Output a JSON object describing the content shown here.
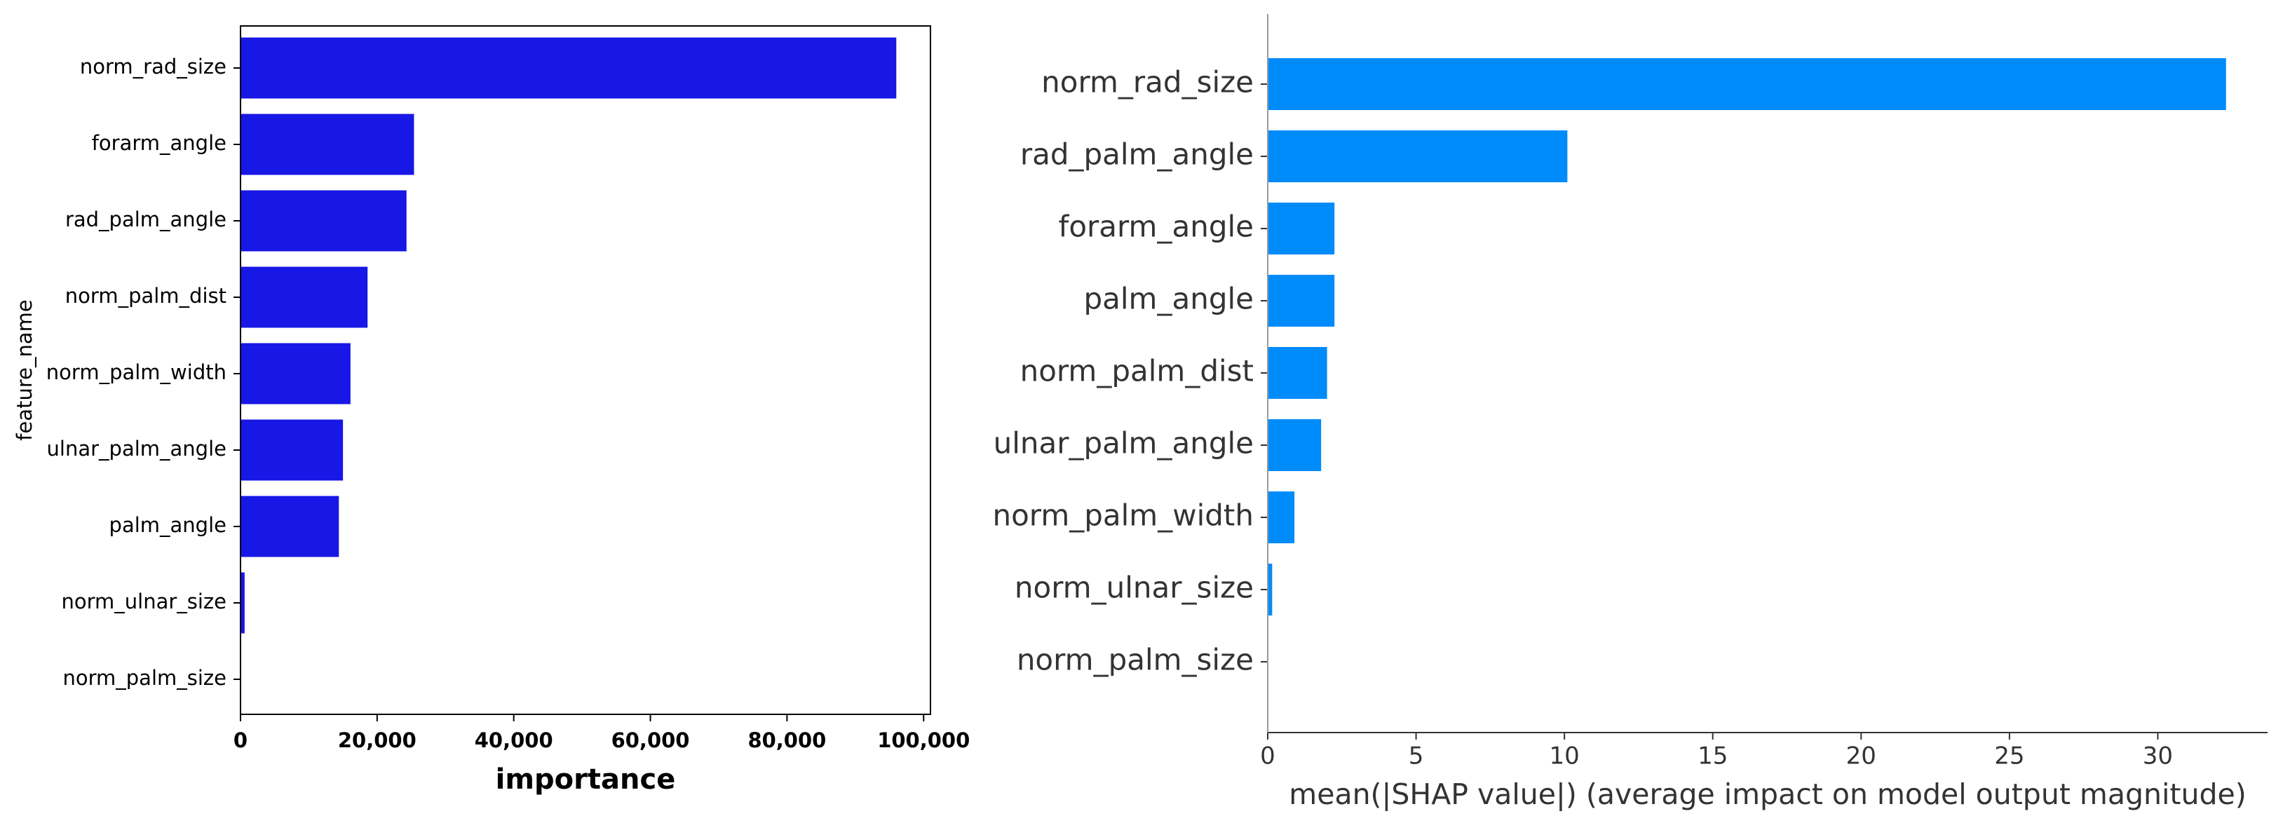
{
  "chart_data": [
    {
      "type": "barh",
      "ylabel": "feature_name",
      "xlabel": "importance",
      "categories": [
        "norm_rad_size",
        "forarm_angle",
        "rad_palm_angle",
        "norm_palm_dist",
        "norm_palm_width",
        "ulnar_palm_angle",
        "palm_angle",
        "norm_ulnar_size",
        "norm_palm_size"
      ],
      "values": [
        96000,
        25400,
        24300,
        18600,
        16100,
        15000,
        14400,
        600,
        0
      ],
      "color": "#1717e6",
      "xlim": [
        0,
        101000
      ],
      "xticks": [
        0,
        {
          "value": 20000,
          "label": "20,000"
        },
        {
          "value": 40000,
          "label": "40,000"
        },
        {
          "value": 60000,
          "label": "60,000"
        },
        {
          "value": 80000,
          "label": "80,000"
        },
        {
          "value": 100000,
          "label": "100,000"
        }
      ]
    },
    {
      "type": "barh",
      "xlabel": "mean(|SHAP value|) (average impact on model output magnitude)",
      "categories": [
        "norm_rad_size",
        "rad_palm_angle",
        "forarm_angle",
        "palm_angle",
        "norm_palm_dist",
        "ulnar_palm_angle",
        "norm_palm_width",
        "norm_ulnar_size",
        "norm_palm_size"
      ],
      "values": [
        32.3,
        10.1,
        2.25,
        2.25,
        2.0,
        1.8,
        0.9,
        0.15,
        0
      ],
      "color": "#008bfb",
      "xlim": [
        0,
        33.7
      ],
      "xticks": [
        0,
        5,
        10,
        15,
        20,
        25,
        30
      ]
    }
  ]
}
